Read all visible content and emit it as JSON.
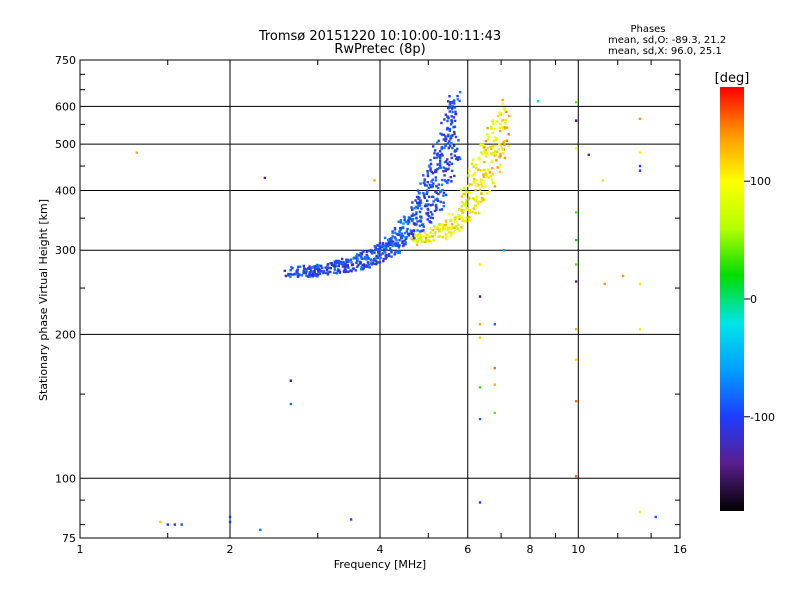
{
  "chart_data": {
    "type": "scatter",
    "title": "Tromsø 20151220 10:10:00-10:11:43",
    "subtitle": "RwPretec (8p)",
    "stats_header": "Phases",
    "stats_line1": "mean, sd,O: -89.3, 21.2",
    "stats_line2": "mean, sd,X:  96.0, 25.1",
    "xlabel": "Frequency [MHz]",
    "ylabel": "Stationary phase Virtual Height [km]",
    "xscale": "log",
    "yscale": "log",
    "xlim": [
      1,
      16
    ],
    "ylim": [
      75,
      750
    ],
    "xticks": [
      1,
      2,
      4,
      6,
      8,
      10,
      16
    ],
    "yticks": [
      75,
      100,
      200,
      300,
      400,
      500,
      600,
      750
    ],
    "grid": true,
    "colorbar": {
      "label": "[deg]",
      "range": [
        -180,
        180
      ],
      "ticks": [
        100,
        0,
        -100
      ],
      "colors": [
        "#000000",
        "#5a1e8c",
        "#1e3cff",
        "#00a0ff",
        "#00e6e6",
        "#00dc00",
        "#b4ff00",
        "#ffff00",
        "#ff9600",
        "#ff0000"
      ]
    },
    "o_mode_trace": [
      {
        "x": 2.6,
        "y": 270,
        "spread_y": 6,
        "phase": -95
      },
      {
        "x": 3.0,
        "y": 272,
        "spread_y": 8,
        "phase": -100
      },
      {
        "x": 3.4,
        "y": 278,
        "spread_y": 10,
        "phase": -100
      },
      {
        "x": 3.8,
        "y": 288,
        "spread_y": 12,
        "phase": -95
      },
      {
        "x": 4.1,
        "y": 300,
        "spread_y": 14,
        "phase": -100
      },
      {
        "x": 4.4,
        "y": 320,
        "spread_y": 20,
        "phase": -90
      },
      {
        "x": 4.7,
        "y": 350,
        "spread_y": 30,
        "phase": -95
      },
      {
        "x": 5.0,
        "y": 390,
        "spread_y": 50,
        "phase": -100
      },
      {
        "x": 5.25,
        "y": 440,
        "spread_y": 80,
        "phase": -95
      },
      {
        "x": 5.5,
        "y": 500,
        "spread_y": 110,
        "phase": -100
      },
      {
        "x": 5.7,
        "y": 560,
        "spread_y": 90,
        "phase": -90
      }
    ],
    "x_mode_trace": [
      {
        "x": 4.7,
        "y": 315,
        "spread_y": 8,
        "phase": 100
      },
      {
        "x": 5.2,
        "y": 325,
        "spread_y": 12,
        "phase": 95
      },
      {
        "x": 5.7,
        "y": 345,
        "spread_y": 20,
        "phase": 100
      },
      {
        "x": 6.0,
        "y": 380,
        "spread_y": 35,
        "phase": 90
      },
      {
        "x": 6.3,
        "y": 420,
        "spread_y": 60,
        "phase": 100
      },
      {
        "x": 6.6,
        "y": 460,
        "spread_y": 70,
        "phase": 110
      },
      {
        "x": 6.9,
        "y": 510,
        "spread_y": 80,
        "phase": 100
      },
      {
        "x": 7.2,
        "y": 560,
        "spread_y": 60,
        "phase": 120
      }
    ],
    "scattered_points": [
      {
        "x": 1.3,
        "y": 480,
        "phase": 130
      },
      {
        "x": 1.45,
        "y": 81,
        "phase": 120
      },
      {
        "x": 1.5,
        "y": 80,
        "phase": -100
      },
      {
        "x": 1.55,
        "y": 80,
        "phase": -110
      },
      {
        "x": 1.6,
        "y": 80,
        "phase": -90
      },
      {
        "x": 2.0,
        "y": 81,
        "phase": -100
      },
      {
        "x": 2.0,
        "y": 83,
        "phase": -110
      },
      {
        "x": 2.3,
        "y": 78,
        "phase": -80
      },
      {
        "x": 2.35,
        "y": 425,
        "phase": -130
      },
      {
        "x": 2.65,
        "y": 160,
        "phase": -150
      },
      {
        "x": 2.65,
        "y": 143,
        "phase": -80
      },
      {
        "x": 3.5,
        "y": 82,
        "phase": -100
      },
      {
        "x": 3.9,
        "y": 420,
        "phase": 130
      },
      {
        "x": 6.35,
        "y": 280,
        "phase": 110
      },
      {
        "x": 6.35,
        "y": 240,
        "phase": -150
      },
      {
        "x": 6.35,
        "y": 210,
        "phase": 130
      },
      {
        "x": 6.35,
        "y": 197,
        "phase": 120
      },
      {
        "x": 6.35,
        "y": 155,
        "phase": 30
      },
      {
        "x": 6.35,
        "y": 133,
        "phase": -80
      },
      {
        "x": 6.35,
        "y": 89,
        "phase": -100
      },
      {
        "x": 6.8,
        "y": 210,
        "phase": -80
      },
      {
        "x": 6.8,
        "y": 170,
        "phase": 150
      },
      {
        "x": 6.8,
        "y": 157,
        "phase": 130
      },
      {
        "x": 6.8,
        "y": 137,
        "phase": 40
      },
      {
        "x": 7.1,
        "y": 300,
        "phase": -60
      },
      {
        "x": 8.3,
        "y": 615,
        "phase": -10
      },
      {
        "x": 9.9,
        "y": 612,
        "phase": 40
      },
      {
        "x": 9.9,
        "y": 560,
        "phase": -150
      },
      {
        "x": 9.9,
        "y": 490,
        "phase": 100
      },
      {
        "x": 9.9,
        "y": 360,
        "phase": 40
      },
      {
        "x": 9.9,
        "y": 315,
        "phase": 20
      },
      {
        "x": 9.9,
        "y": 280,
        "phase": 40
      },
      {
        "x": 9.9,
        "y": 258,
        "phase": -140
      },
      {
        "x": 9.9,
        "y": 205,
        "phase": 130
      },
      {
        "x": 9.9,
        "y": 177,
        "phase": 110
      },
      {
        "x": 9.9,
        "y": 145,
        "phase": 150
      },
      {
        "x": 9.9,
        "y": 101,
        "phase": 150
      },
      {
        "x": 10.5,
        "y": 475,
        "phase": -120
      },
      {
        "x": 11.2,
        "y": 420,
        "phase": 110
      },
      {
        "x": 11.3,
        "y": 255,
        "phase": 140
      },
      {
        "x": 12.3,
        "y": 265,
        "phase": 140
      },
      {
        "x": 13.3,
        "y": 565,
        "phase": 140
      },
      {
        "x": 13.3,
        "y": 450,
        "phase": -110
      },
      {
        "x": 13.3,
        "y": 440,
        "phase": -100
      },
      {
        "x": 13.3,
        "y": 480,
        "phase": 110
      },
      {
        "x": 13.3,
        "y": 255,
        "phase": 110
      },
      {
        "x": 13.3,
        "y": 205,
        "phase": 110
      },
      {
        "x": 13.3,
        "y": 85,
        "phase": 110
      },
      {
        "x": 14.3,
        "y": 83,
        "phase": -90
      }
    ]
  }
}
